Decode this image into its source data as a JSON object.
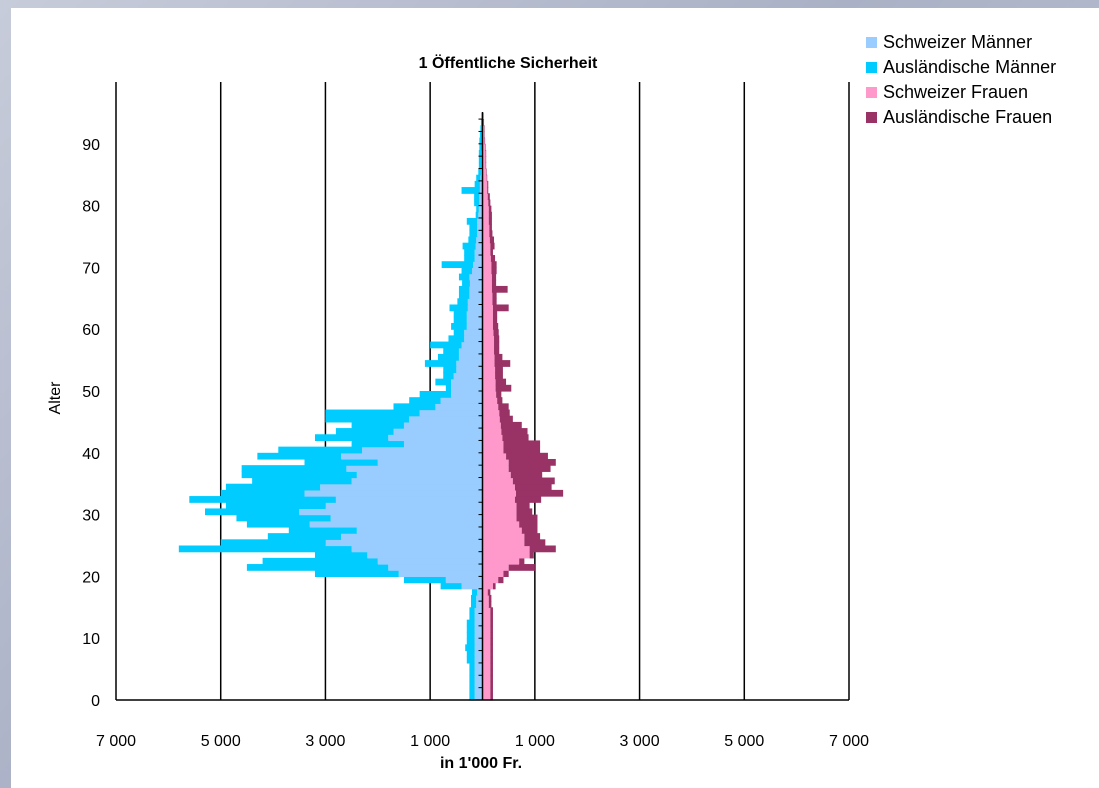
{
  "chart_data": {
    "type": "bar",
    "orientation": "horizontal",
    "layout": "population-pyramid",
    "title": "1 Öffentliche Sicherheit",
    "xlabel": "in 1'000 Fr.",
    "ylabel": "Alter",
    "xlim": [
      -7000,
      7000
    ],
    "ylim": [
      0,
      100
    ],
    "x_tick_labels": [
      "7 000",
      "5 000",
      "3 000",
      "1 000",
      "1 000",
      "3 000",
      "5 000",
      "7 000"
    ],
    "y_tick_labels": [
      "0",
      "10",
      "20",
      "30",
      "40",
      "50",
      "60",
      "70",
      "80",
      "90"
    ],
    "grid": "vertical",
    "legend_position": "top-right",
    "ages": [
      0,
      1,
      2,
      3,
      4,
      5,
      6,
      7,
      8,
      9,
      10,
      11,
      12,
      13,
      14,
      15,
      16,
      17,
      18,
      19,
      20,
      21,
      22,
      23,
      24,
      25,
      26,
      27,
      28,
      29,
      30,
      31,
      32,
      33,
      34,
      35,
      36,
      37,
      38,
      39,
      40,
      41,
      42,
      43,
      44,
      45,
      46,
      47,
      48,
      49,
      50,
      51,
      52,
      53,
      54,
      55,
      56,
      57,
      58,
      59,
      60,
      61,
      62,
      63,
      64,
      65,
      66,
      67,
      68,
      69,
      70,
      71,
      72,
      73,
      74,
      75,
      76,
      77,
      78,
      79,
      80,
      81,
      82,
      83,
      84,
      85,
      86,
      87,
      88,
      89,
      90,
      91,
      92,
      93,
      94
    ],
    "series": [
      {
        "name": "Schweizer Männer",
        "color": "#99ccff",
        "values": [
          -150,
          -150,
          -150,
          -150,
          -150,
          -150,
          -150,
          -150,
          -150,
          -150,
          -150,
          -150,
          -150,
          -150,
          -150,
          -120,
          -120,
          -100,
          -400,
          -700,
          -1600,
          -1800,
          -2000,
          -2200,
          -2500,
          -3000,
          -2700,
          -2400,
          -3300,
          -2900,
          -3500,
          -3000,
          -2800,
          -3400,
          -3100,
          -2500,
          -2400,
          -2600,
          -2000,
          -2700,
          -2300,
          -1500,
          -1800,
          -1700,
          -1500,
          -1400,
          -1200,
          -900,
          -800,
          -600,
          -600,
          -600,
          -550,
          -500,
          -500,
          -450,
          -450,
          -400,
          -350,
          -350,
          -300,
          -300,
          -300,
          -280,
          -280,
          -250,
          -250,
          -240,
          -250,
          -200,
          -180,
          -150,
          -150,
          -130,
          -120,
          -100,
          -100,
          -100,
          -80,
          -70,
          -60,
          -60,
          -50,
          -50,
          -40,
          -30,
          -20,
          -20,
          -20,
          -10,
          -10,
          -10,
          -10,
          -10,
          -10
        ]
      },
      {
        "name": "Ausländische Männer",
        "color": "#00ccff",
        "values": [
          -100,
          -100,
          -100,
          -100,
          -100,
          -100,
          -150,
          -150,
          -180,
          -150,
          -150,
          -150,
          -150,
          -100,
          -100,
          -100,
          -100,
          -100,
          -400,
          -800,
          -1600,
          -2700,
          -2200,
          -1000,
          -3300,
          -2000,
          -1400,
          -1300,
          -1200,
          -1800,
          -1800,
          -1900,
          -2800,
          -1600,
          -1800,
          -1900,
          -2200,
          -2000,
          -1400,
          -1600,
          -1600,
          -1000,
          -1400,
          -1100,
          -1000,
          -1600,
          -1800,
          -800,
          -600,
          -600,
          -100,
          -300,
          -200,
          -250,
          -600,
          -400,
          -300,
          -600,
          -300,
          -200,
          -300,
          -250,
          -250,
          -350,
          -200,
          -200,
          -200,
          -150,
          -200,
          -200,
          -600,
          -200,
          -200,
          -250,
          -150,
          -150,
          -150,
          -200,
          -50,
          -50,
          -100,
          -100,
          -350,
          -100,
          -80,
          -50,
          -50,
          -50,
          -50,
          -50,
          -50,
          -40,
          -30,
          -20,
          -10
        ]
      },
      {
        "name": "Schweizer Frauen",
        "color": "#ff99cc",
        "values": [
          150,
          150,
          150,
          150,
          150,
          150,
          150,
          150,
          150,
          150,
          150,
          150,
          150,
          150,
          150,
          120,
          120,
          100,
          200,
          300,
          400,
          500,
          700,
          900,
          900,
          800,
          800,
          750,
          700,
          650,
          650,
          650,
          620,
          640,
          620,
          580,
          540,
          500,
          500,
          450,
          400,
          400,
          380,
          360,
          350,
          330,
          320,
          300,
          280,
          260,
          250,
          250,
          240,
          240,
          230,
          230,
          220,
          220,
          220,
          210,
          200,
          200,
          200,
          200,
          190,
          190,
          180,
          180,
          180,
          170,
          170,
          160,
          150,
          150,
          140,
          130,
          130,
          120,
          120,
          120,
          110,
          100,
          90,
          90,
          80,
          70,
          60,
          60,
          60,
          50,
          40,
          30,
          30,
          20,
          10
        ]
      },
      {
        "name": "Ausländische Frauen",
        "color": "#993366",
        "values": [
          50,
          50,
          50,
          50,
          50,
          50,
          50,
          50,
          50,
          50,
          50,
          50,
          50,
          50,
          50,
          50,
          50,
          50,
          50,
          100,
          100,
          500,
          100,
          80,
          500,
          400,
          300,
          300,
          350,
          400,
          300,
          250,
          500,
          900,
          700,
          800,
          600,
          800,
          900,
          800,
          700,
          700,
          500,
          500,
          400,
          250,
          200,
          200,
          100,
          100,
          300,
          200,
          150,
          150,
          300,
          150,
          100,
          100,
          100,
          100,
          100,
          80,
          80,
          300,
          80,
          80,
          300,
          80,
          80,
          100,
          100,
          80,
          50,
          80,
          80,
          60,
          50,
          60,
          60,
          50,
          40,
          40,
          20,
          20,
          10,
          10,
          10,
          10,
          10,
          10,
          0,
          0,
          0,
          0,
          0
        ]
      }
    ]
  }
}
